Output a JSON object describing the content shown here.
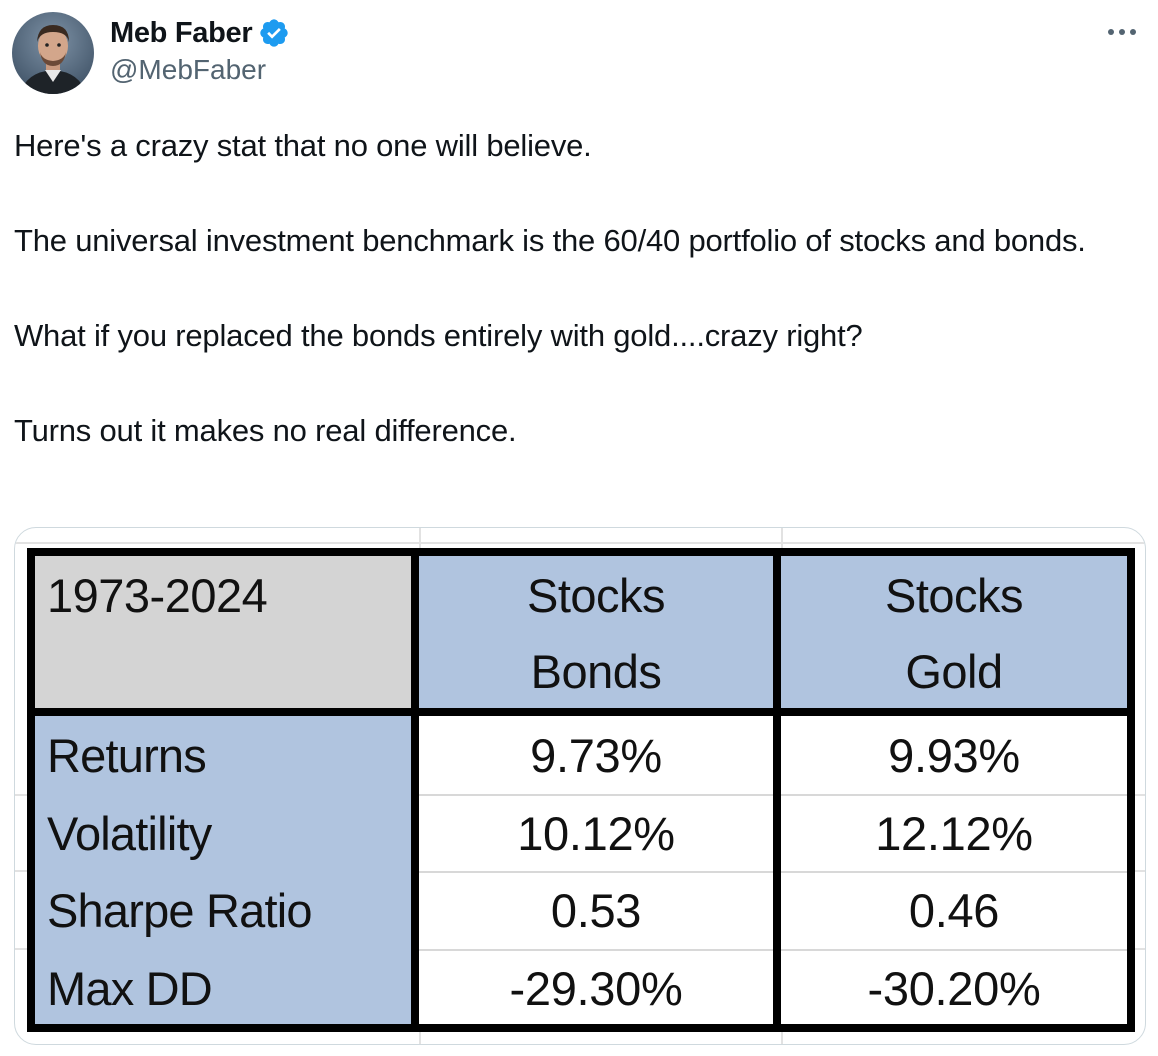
{
  "author": {
    "display_name": "Meb Faber",
    "handle": "@MebFaber",
    "verified": true,
    "verified_badge_color": "#1d9bf0"
  },
  "tweet": {
    "paragraphs": [
      "Here's a crazy stat that no one will believe.",
      "The universal investment benchmark is the 60/40 portfolio of stocks and bonds.",
      "What if you replaced the bonds entirely with gold....crazy right?",
      "Turns out it makes no real difference."
    ]
  },
  "media": {
    "table": {
      "period": "1973-2024",
      "columns": [
        {
          "line1": "Stocks",
          "line2": "Bonds"
        },
        {
          "line1": "Stocks",
          "line2": "Gold"
        }
      ],
      "rows": [
        {
          "metric": "Returns",
          "values": [
            "9.73%",
            "9.93%"
          ]
        },
        {
          "metric": "Volatility",
          "values": [
            "10.12%",
            "12.12%"
          ]
        },
        {
          "metric": "Sharpe Ratio",
          "values": [
            "0.53",
            "0.46"
          ]
        },
        {
          "metric": "Max DD",
          "values": [
            "-29.30%",
            "-30.20%"
          ]
        }
      ],
      "colors": {
        "header_period_bg": "#d4d4d4",
        "header_bg": "#b0c4df",
        "metric_bg": "#b0c4df",
        "value_bg": "#ffffff",
        "border": "#000000"
      }
    }
  },
  "icons": {
    "avatar": "avatar-photo",
    "verified": "verified-badge-icon",
    "more": "more-options-icon"
  }
}
